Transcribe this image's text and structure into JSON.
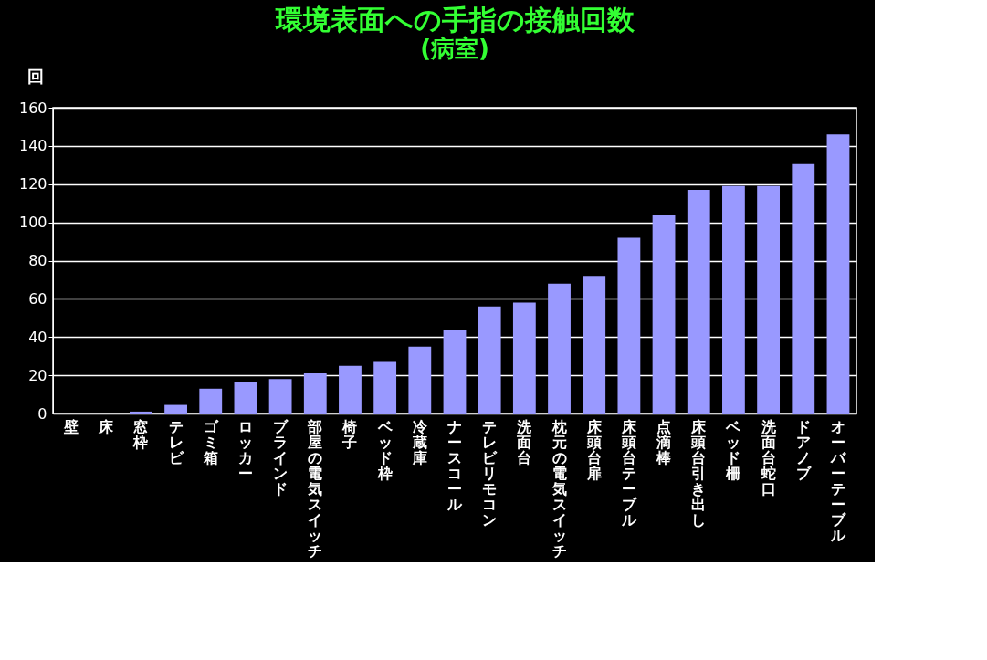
{
  "chart_data": {
    "type": "bar",
    "title": "環境表面への手指の接触回数",
    "subtitle": "(病室)",
    "ylabel": "回",
    "categories": [
      "壁",
      "床",
      "窓枠",
      "テレビ",
      "ゴミ箱",
      "ロッカー",
      "ブラインド",
      "部屋の電気スイッチ",
      "椅子",
      "ベッド枠",
      "冷蔵庫",
      "ナースコール",
      "テレビリモコン",
      "洗面台",
      "枕元の電気スイッチ",
      "床頭台扉",
      "床頭台テーブル",
      "点滴棒",
      "床頭台引き出し",
      "ベッド柵",
      "洗面台蛇口",
      "ドアノブ",
      "オーバーテーブル"
    ],
    "values": [
      0,
      0,
      1,
      4.5,
      13,
      16.5,
      18,
      21,
      25,
      27,
      35,
      44,
      56,
      58,
      68,
      72,
      92,
      104,
      117,
      119,
      119,
      130.5,
      146
    ],
    "color": "#9999ff",
    "ylim": [
      0,
      160
    ],
    "yticks": [
      0,
      20,
      40,
      60,
      80,
      100,
      120,
      140,
      160
    ],
    "grid": "y"
  }
}
